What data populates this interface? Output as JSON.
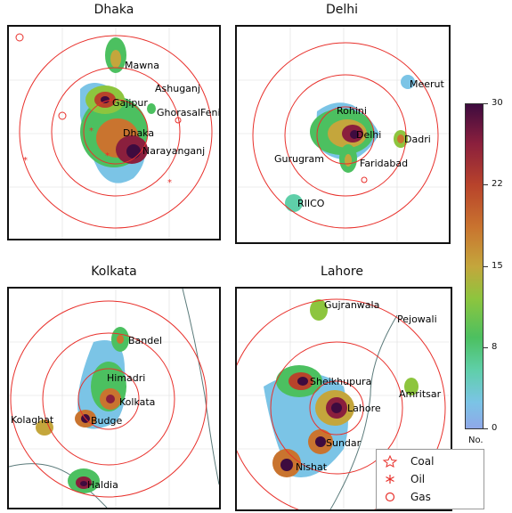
{
  "panels": [
    {
      "title": "Dhaka",
      "labels": [
        "Mawna",
        "Ashuganj",
        "Gajipur",
        "GhorasalFeni",
        "Dhaka",
        "Narayanganj"
      ]
    },
    {
      "title": "Delhi",
      "labels": [
        "Meerut",
        "Rohini",
        "Delhi",
        "Dadri",
        "Gurugram",
        "Faridabad",
        "RIICO"
      ]
    },
    {
      "title": "Kolkata",
      "labels": [
        "Bandel",
        "Himadri",
        "Kolkata",
        "Kolaghat",
        "Budge",
        "Haldia"
      ]
    },
    {
      "title": "Lahore",
      "labels": [
        "Gujranwala",
        "Pejowali",
        "Sheikhupura",
        "Amritsar",
        "Lahore",
        "Sundar",
        "Nishat"
      ]
    }
  ],
  "colorbar": {
    "ticks": [
      "30",
      "22",
      "15",
      "8",
      "0"
    ],
    "unit": "No."
  },
  "legend": {
    "items": [
      {
        "symbol": "star-icon",
        "label": "Coal"
      },
      {
        "symbol": "asterisk-icon",
        "label": "Oil"
      },
      {
        "symbol": "circle-icon",
        "label": "Gas"
      }
    ]
  },
  "colors": {
    "ring": "#e8302b",
    "marker": "#e8302b",
    "hot": "#3e0b3f",
    "warm": "#b8432b",
    "mid": "#4cc060",
    "low": "#8fa8e8"
  }
}
